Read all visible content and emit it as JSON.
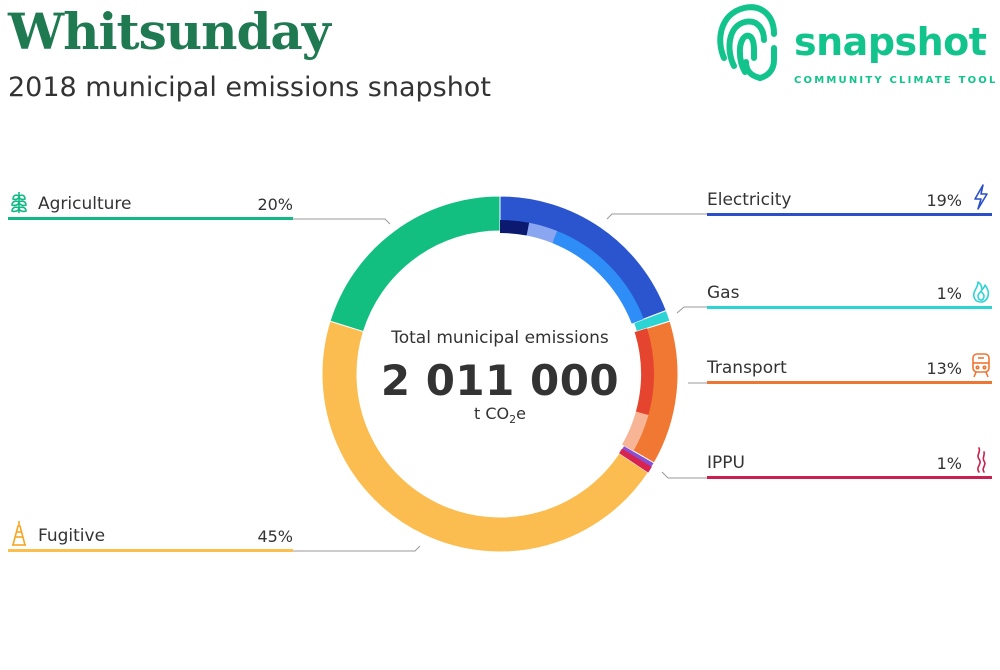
{
  "header": {
    "title": "Whitsunday",
    "subtitle": "2018 municipal emissions snapshot"
  },
  "logo": {
    "word": "snapshot",
    "tagline": "COMMUNITY CLIMATE TOOL",
    "color": "#12c48b",
    "icon": "fingerprint-icon"
  },
  "center": {
    "caption": "Total municipal emissions",
    "total": "2 011 000",
    "unit_prefix": "t CO",
    "unit_sub": "2",
    "unit_suffix": "e"
  },
  "labels": [
    {
      "key": "agriculture",
      "name": "Agriculture",
      "pct": "20%",
      "color": "#12b886",
      "icon": "wheat-icon",
      "side": "left"
    },
    {
      "key": "fugitive",
      "name": "Fugitive",
      "pct": "45%",
      "color": "#fbbf4e",
      "icon": "oil-rig-icon",
      "side": "left"
    },
    {
      "key": "electricity",
      "name": "Electricity",
      "pct": "19%",
      "color": "#2a4fc8",
      "icon": "lightning-icon",
      "side": "right"
    },
    {
      "key": "gas",
      "name": "Gas",
      "pct": "1%",
      "color": "#2dd4d4",
      "icon": "flame-icon",
      "side": "right"
    },
    {
      "key": "transport",
      "name": "Transport",
      "pct": "13%",
      "color": "#ee7633",
      "icon": "train-icon",
      "side": "right"
    },
    {
      "key": "ippu",
      "name": "IPPU",
      "pct": "1%",
      "color": "#c9204f",
      "icon": "smoke-icon",
      "side": "right"
    }
  ],
  "chart_data": {
    "type": "pie",
    "title": "2018 municipal emissions snapshot",
    "total": 2011000,
    "unit": "t CO2e",
    "slices": [
      {
        "name": "Electricity",
        "value": 19,
        "color": "#2a55cf"
      },
      {
        "name": "Gas",
        "value": 1,
        "color": "#2dd4d4"
      },
      {
        "name": "Transport",
        "value": 13,
        "color": "#f07833"
      },
      {
        "name": "IPPU",
        "value": 1,
        "color": "#8a4fd0"
      },
      {
        "name": "Fugitive",
        "value": 45,
        "color": "#fbbd4f"
      },
      {
        "name": "Agriculture",
        "value": 20,
        "color": "#12bf80"
      }
    ],
    "sub_slices": [
      {
        "parent": "Electricity",
        "value": 3,
        "color": "#0b1a6e"
      },
      {
        "parent": "Electricity",
        "value": 3,
        "color": "#8aa6f0"
      },
      {
        "parent": "Electricity",
        "value": 13,
        "color": "#2f8df7"
      },
      {
        "parent": "Transport",
        "value": 9,
        "color": "#e5442e"
      },
      {
        "parent": "Transport",
        "value": 4,
        "color": "#f8b595"
      }
    ],
    "ippu_extra": {
      "color": "#d8224f",
      "value": 0.6
    }
  }
}
